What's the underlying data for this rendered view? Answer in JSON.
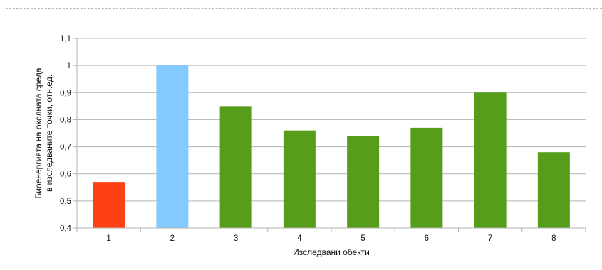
{
  "chart_data": {
    "type": "bar",
    "categories": [
      "1",
      "2",
      "3",
      "4",
      "5",
      "6",
      "7",
      "8"
    ],
    "values": [
      0.57,
      1.0,
      0.85,
      0.76,
      0.74,
      0.77,
      0.9,
      0.68
    ],
    "bar_colors": [
      "#fd4115",
      "#83caff",
      "#579d1c",
      "#579d1c",
      "#579d1c",
      "#579d1c",
      "#579d1c",
      "#579d1c"
    ],
    "y_ticks": [
      "0,4",
      "0,5",
      "0,6",
      "0,7",
      "0,8",
      "0,9",
      "1",
      "1,1"
    ],
    "xlabel": "Изследвани обекти",
    "ylabel_line1": "Биоенергията на околната среда",
    "ylabel_line2": "в изследваните точки, отн.ед.",
    "ylim": [
      0.4,
      1.1
    ],
    "grid": true,
    "colors": {
      "grid": "#b3b3b3",
      "axis": "#b3b3b3"
    }
  }
}
